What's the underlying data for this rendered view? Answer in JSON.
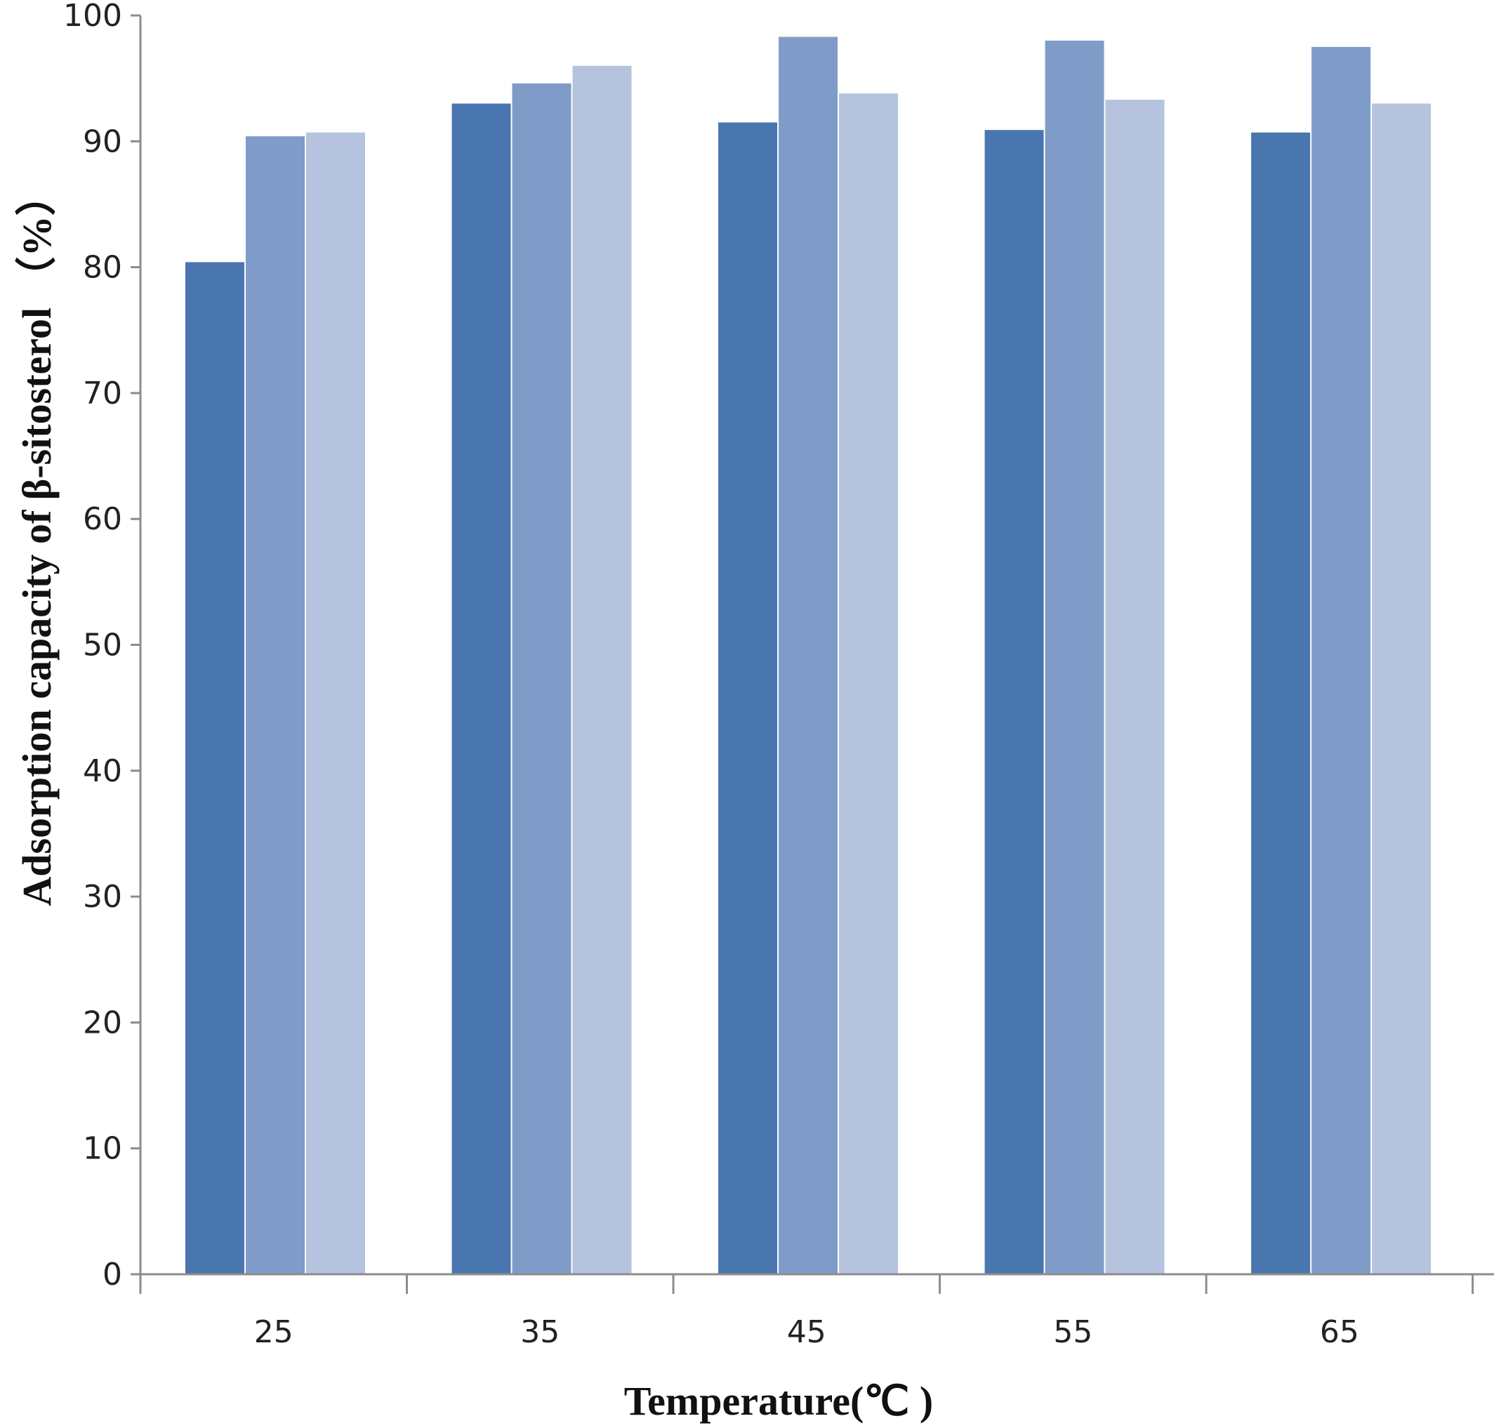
{
  "chart_data": {
    "type": "bar",
    "title": "",
    "xlabel": "Temperature(℃ )",
    "ylabel": "Adsorption capacity of β-sitosterol （%）",
    "categories": [
      "25",
      "35",
      "45",
      "55",
      "65"
    ],
    "series": [
      {
        "values": [
          80.4,
          93.0,
          91.5,
          90.9,
          90.7
        ],
        "color": "#4a76b0"
      },
      {
        "values": [
          90.4,
          94.6,
          98.3,
          98.0,
          97.5
        ],
        "color": "#7f9cc8"
      },
      {
        "values": [
          90.7,
          96.0,
          93.8,
          93.3,
          93.0
        ],
        "color": "#b5c3df"
      }
    ],
    "ylim": [
      0,
      100
    ],
    "yticks": [
      "0",
      "10",
      "20",
      "30",
      "40",
      "50",
      "60",
      "70",
      "80",
      "90",
      "100"
    ],
    "grid": false,
    "legend": "none"
  }
}
